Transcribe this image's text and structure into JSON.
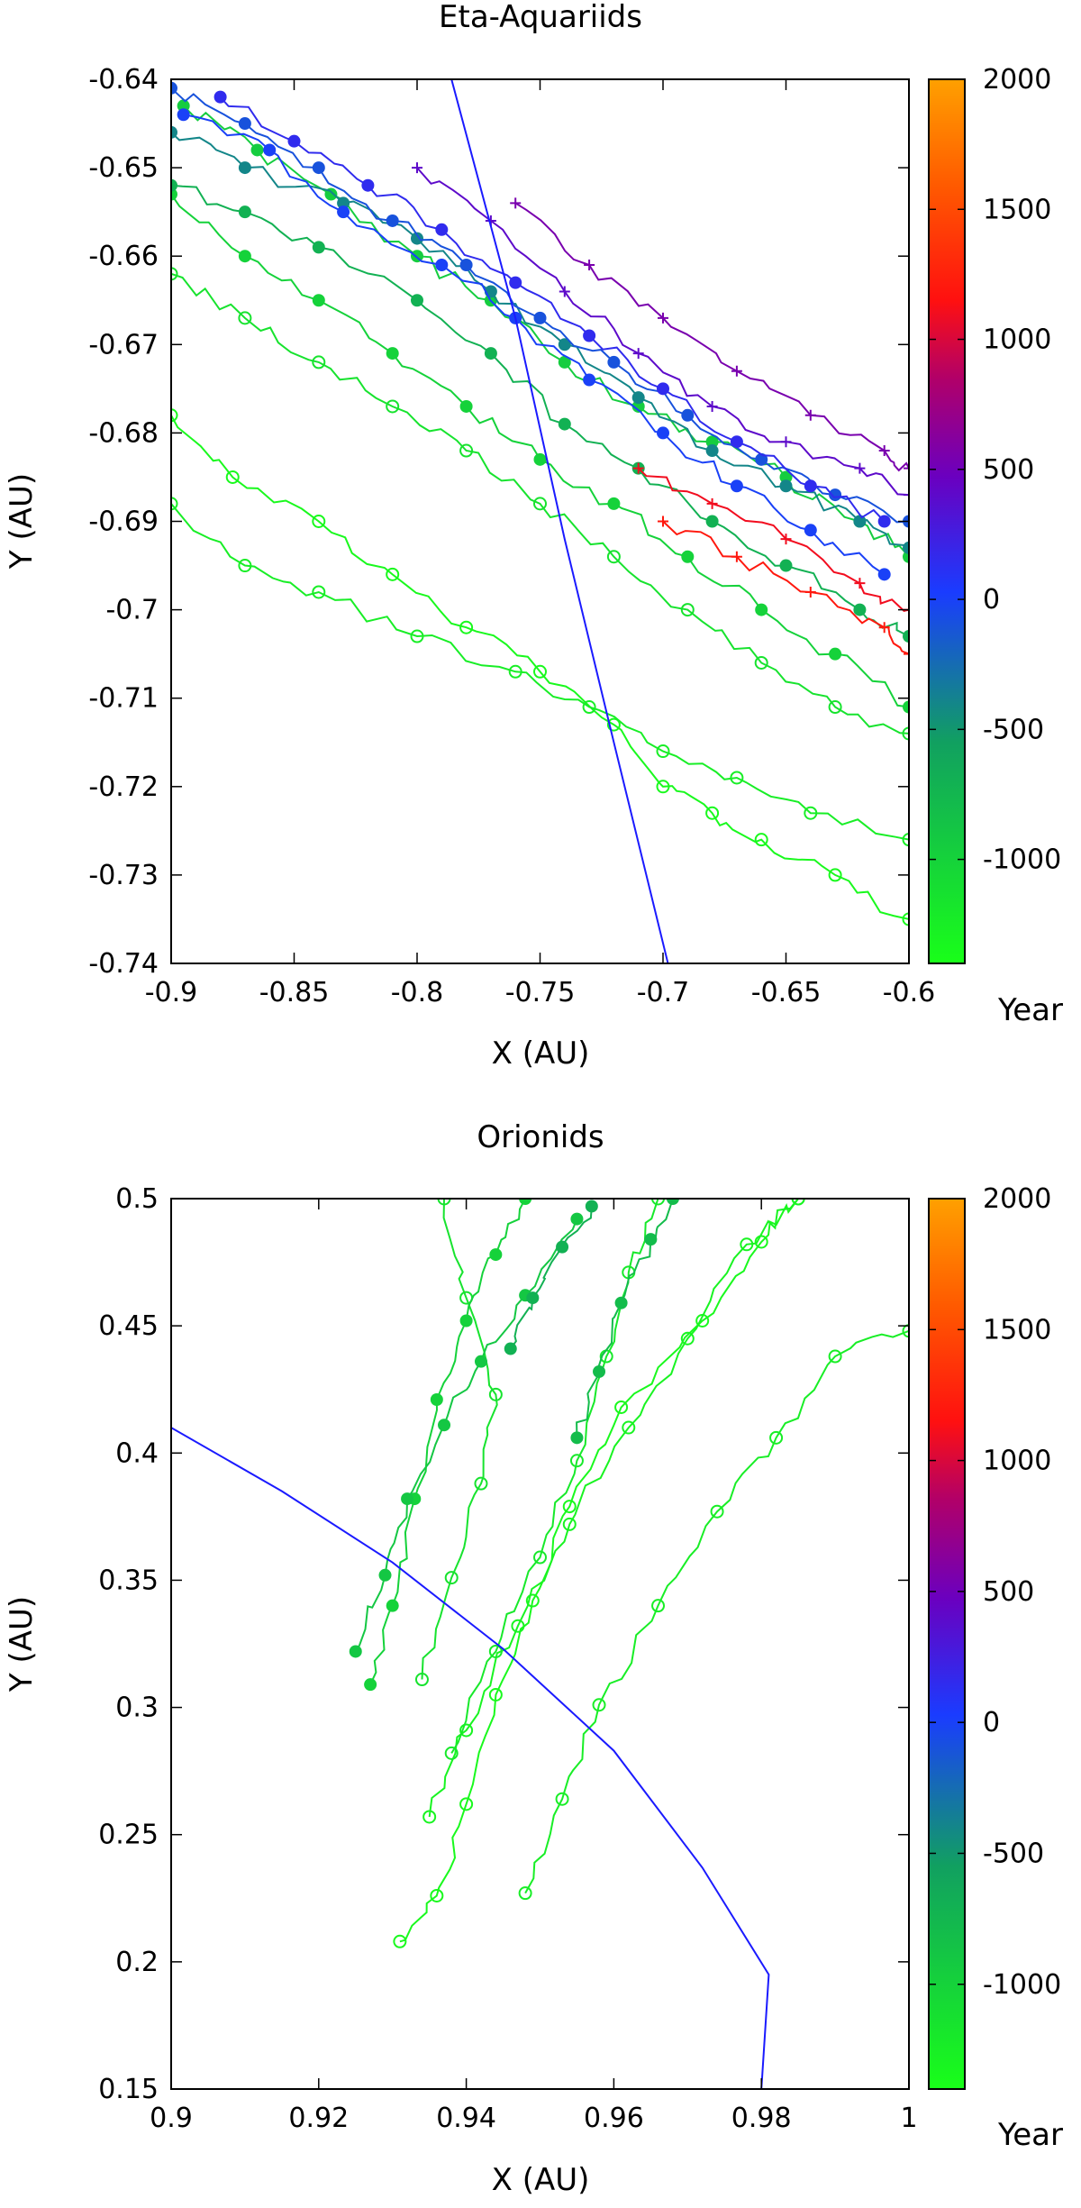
{
  "chart_data": [
    {
      "type": "line",
      "title": "Eta-Aquariids",
      "xlabel": "X (AU)",
      "ylabel": "Y (AU)",
      "xlim": [
        -0.9,
        -0.6
      ],
      "ylim": [
        -0.74,
        -0.64
      ],
      "xticks": [
        "-0.9",
        "-0.85",
        "-0.8",
        "-0.75",
        "-0.7",
        "-0.65",
        "-0.6"
      ],
      "yticks": [
        "-0.64",
        "-0.65",
        "-0.66",
        "-0.67",
        "-0.68",
        "-0.69",
        "-0.7",
        "-0.71",
        "-0.72",
        "-0.73",
        "-0.74"
      ],
      "colorbar": {
        "label": "Year",
        "range": [
          -1400,
          2000
        ],
        "ticks": [
          "2000",
          "1500",
          "1000",
          "500",
          "0",
          "-500",
          "-1000"
        ]
      },
      "earth_orbit": {
        "color": "#1a1aff",
        "points": [
          [
            -0.786,
            -0.64
          ],
          [
            -0.76,
            -0.667
          ],
          [
            -0.74,
            -0.692
          ],
          [
            -0.72,
            -0.715
          ],
          [
            -0.698,
            -0.74
          ]
        ]
      },
      "series": [
        {
          "year": -1350,
          "marker": "open-circle",
          "points": [
            [
              -0.9,
              -0.678
            ],
            [
              -0.875,
              -0.685
            ],
            [
              -0.84,
              -0.69
            ],
            [
              -0.81,
              -0.696
            ],
            [
              -0.78,
              -0.702
            ],
            [
              -0.75,
              -0.707
            ],
            [
              -0.72,
              -0.713
            ],
            [
              -0.7,
              -0.72
            ],
            [
              -0.68,
              -0.723
            ],
            [
              -0.66,
              -0.726
            ],
            [
              -0.63,
              -0.73
            ],
            [
              -0.6,
              -0.735
            ]
          ]
        },
        {
          "year": -1250,
          "marker": "open-circle",
          "points": [
            [
              -0.9,
              -0.688
            ],
            [
              -0.87,
              -0.695
            ],
            [
              -0.84,
              -0.698
            ],
            [
              -0.8,
              -0.703
            ],
            [
              -0.76,
              -0.707
            ],
            [
              -0.73,
              -0.711
            ],
            [
              -0.7,
              -0.716
            ],
            [
              -0.67,
              -0.719
            ],
            [
              -0.64,
              -0.723
            ],
            [
              -0.6,
              -0.726
            ]
          ]
        },
        {
          "year": -1150,
          "marker": "open-circle",
          "points": [
            [
              -0.9,
              -0.662
            ],
            [
              -0.87,
              -0.667
            ],
            [
              -0.84,
              -0.672
            ],
            [
              -0.81,
              -0.677
            ],
            [
              -0.78,
              -0.682
            ],
            [
              -0.75,
              -0.688
            ],
            [
              -0.72,
              -0.694
            ],
            [
              -0.69,
              -0.7
            ],
            [
              -0.66,
              -0.706
            ],
            [
              -0.63,
              -0.711
            ],
            [
              -0.6,
              -0.714
            ]
          ]
        },
        {
          "year": -1000,
          "marker": "filled-circle",
          "points": [
            [
              -0.9,
              -0.653
            ],
            [
              -0.87,
              -0.66
            ],
            [
              -0.84,
              -0.665
            ],
            [
              -0.81,
              -0.671
            ],
            [
              -0.78,
              -0.677
            ],
            [
              -0.75,
              -0.683
            ],
            [
              -0.72,
              -0.688
            ],
            [
              -0.69,
              -0.694
            ],
            [
              -0.66,
              -0.7
            ],
            [
              -0.63,
              -0.705
            ],
            [
              -0.6,
              -0.711
            ]
          ]
        },
        {
          "year": -950,
          "marker": "filled-circle",
          "points": [
            [
              -0.895,
              -0.643
            ],
            [
              -0.865,
              -0.648
            ],
            [
              -0.835,
              -0.653
            ],
            [
              -0.8,
              -0.66
            ],
            [
              -0.77,
              -0.665
            ],
            [
              -0.74,
              -0.672
            ],
            [
              -0.71,
              -0.677
            ],
            [
              -0.68,
              -0.681
            ],
            [
              -0.65,
              -0.685
            ],
            [
              -0.62,
              -0.69
            ],
            [
              -0.6,
              -0.694
            ]
          ]
        },
        {
          "year": -700,
          "marker": "filled-circle",
          "points": [
            [
              -0.9,
              -0.652
            ],
            [
              -0.87,
              -0.655
            ],
            [
              -0.84,
              -0.659
            ],
            [
              -0.8,
              -0.665
            ],
            [
              -0.77,
              -0.671
            ],
            [
              -0.74,
              -0.679
            ],
            [
              -0.71,
              -0.684
            ],
            [
              -0.68,
              -0.69
            ],
            [
              -0.65,
              -0.695
            ],
            [
              -0.62,
              -0.7
            ],
            [
              -0.6,
              -0.703
            ]
          ]
        },
        {
          "year": -400,
          "marker": "filled-circle",
          "points": [
            [
              -0.9,
              -0.646
            ],
            [
              -0.87,
              -0.65
            ],
            [
              -0.83,
              -0.654
            ],
            [
              -0.8,
              -0.658
            ],
            [
              -0.77,
              -0.664
            ],
            [
              -0.74,
              -0.67
            ],
            [
              -0.71,
              -0.676
            ],
            [
              -0.68,
              -0.682
            ],
            [
              -0.65,
              -0.686
            ],
            [
              -0.62,
              -0.69
            ],
            [
              -0.6,
              -0.693
            ]
          ]
        },
        {
          "year": -100,
          "marker": "filled-circle",
          "points": [
            [
              -0.9,
              -0.641
            ],
            [
              -0.87,
              -0.645
            ],
            [
              -0.84,
              -0.65
            ],
            [
              -0.81,
              -0.656
            ],
            [
              -0.78,
              -0.661
            ],
            [
              -0.75,
              -0.667
            ],
            [
              -0.72,
              -0.672
            ],
            [
              -0.69,
              -0.678
            ],
            [
              -0.66,
              -0.683
            ],
            [
              -0.63,
              -0.687
            ],
            [
              -0.6,
              -0.69
            ]
          ]
        },
        {
          "year": 0,
          "marker": "filled-circle",
          "points": [
            [
              -0.895,
              -0.644
            ],
            [
              -0.86,
              -0.648
            ],
            [
              -0.83,
              -0.655
            ],
            [
              -0.79,
              -0.661
            ],
            [
              -0.76,
              -0.667
            ],
            [
              -0.73,
              -0.674
            ],
            [
              -0.7,
              -0.68
            ],
            [
              -0.67,
              -0.686
            ],
            [
              -0.64,
              -0.691
            ],
            [
              -0.61,
              -0.696
            ]
          ]
        },
        {
          "year": 150,
          "marker": "filled-circle",
          "points": [
            [
              -0.88,
              -0.642
            ],
            [
              -0.85,
              -0.647
            ],
            [
              -0.82,
              -0.652
            ],
            [
              -0.79,
              -0.657
            ],
            [
              -0.76,
              -0.663
            ],
            [
              -0.73,
              -0.669
            ],
            [
              -0.7,
              -0.675
            ],
            [
              -0.67,
              -0.681
            ],
            [
              -0.64,
              -0.686
            ],
            [
              -0.61,
              -0.69
            ]
          ]
        },
        {
          "year": 400,
          "marker": "plus",
          "points": [
            [
              -0.8,
              -0.65
            ],
            [
              -0.77,
              -0.656
            ],
            [
              -0.74,
              -0.664
            ],
            [
              -0.71,
              -0.671
            ],
            [
              -0.68,
              -0.677
            ],
            [
              -0.65,
              -0.681
            ],
            [
              -0.62,
              -0.684
            ],
            [
              -0.6,
              -0.687
            ]
          ]
        },
        {
          "year": 550,
          "marker": "plus",
          "points": [
            [
              -0.76,
              -0.654
            ],
            [
              -0.73,
              -0.661
            ],
            [
              -0.7,
              -0.667
            ],
            [
              -0.67,
              -0.673
            ],
            [
              -0.64,
              -0.678
            ],
            [
              -0.61,
              -0.682
            ],
            [
              -0.6,
              -0.684
            ]
          ]
        },
        {
          "year": 1100,
          "marker": "plus",
          "points": [
            [
              -0.71,
              -0.684
            ],
            [
              -0.68,
              -0.688
            ],
            [
              -0.65,
              -0.692
            ],
            [
              -0.62,
              -0.697
            ],
            [
              -0.6,
              -0.7
            ]
          ]
        },
        {
          "year": 1200,
          "marker": "plus",
          "points": [
            [
              -0.7,
              -0.69
            ],
            [
              -0.67,
              -0.694
            ],
            [
              -0.64,
              -0.698
            ],
            [
              -0.61,
              -0.702
            ],
            [
              -0.6,
              -0.705
            ]
          ]
        }
      ]
    },
    {
      "type": "line",
      "title": "Orionids",
      "xlabel": "X (AU)",
      "ylabel": "Y (AU)",
      "xlim": [
        0.9,
        1.0
      ],
      "ylim": [
        0.15,
        0.5
      ],
      "xticks": [
        "0.9",
        "0.92",
        "0.94",
        "0.96",
        "0.98",
        "1"
      ],
      "yticks": [
        "0.5",
        "0.45",
        "0.4",
        "0.35",
        "0.3",
        "0.25",
        "0.2",
        "0.15"
      ],
      "colorbar": {
        "label": "Year",
        "range": [
          -1400,
          2000
        ],
        "ticks": [
          "2000",
          "1500",
          "1000",
          "500",
          "0",
          "-500",
          "-1000"
        ]
      },
      "earth_orbit": {
        "color": "#1a1aff",
        "points": [
          [
            0.9,
            0.41
          ],
          [
            0.915,
            0.385
          ],
          [
            0.93,
            0.357
          ],
          [
            0.945,
            0.323
          ],
          [
            0.96,
            0.283
          ],
          [
            0.972,
            0.237
          ],
          [
            0.981,
            0.195
          ],
          [
            0.98,
            0.15
          ]
        ]
      },
      "series": [
        {
          "year": -1350,
          "marker": "open-circle",
          "points": [
            [
              0.931,
              0.208
            ],
            [
              0.936,
              0.226
            ],
            [
              0.94,
              0.262
            ],
            [
              0.944,
              0.305
            ],
            [
              0.949,
              0.342
            ],
            [
              0.954,
              0.379
            ],
            [
              0.961,
              0.418
            ],
            [
              0.972,
              0.452
            ],
            [
              0.98,
              0.483
            ],
            [
              0.985,
              0.5
            ]
          ]
        },
        {
          "year": -1300,
          "marker": "open-circle",
          "points": [
            [
              0.935,
              0.257
            ],
            [
              0.94,
              0.291
            ],
            [
              0.947,
              0.332
            ],
            [
              0.954,
              0.372
            ],
            [
              0.962,
              0.41
            ],
            [
              0.97,
              0.445
            ],
            [
              0.978,
              0.482
            ],
            [
              0.985,
              0.5
            ]
          ]
        },
        {
          "year": -1250,
          "marker": "open-circle",
          "points": [
            [
              0.948,
              0.227
            ],
            [
              0.953,
              0.264
            ],
            [
              0.958,
              0.301
            ],
            [
              0.966,
              0.34
            ],
            [
              0.974,
              0.377
            ],
            [
              0.982,
              0.406
            ],
            [
              0.99,
              0.438
            ],
            [
              1.0,
              0.448
            ]
          ]
        },
        {
          "year": -1200,
          "marker": "open-circle",
          "points": [
            [
              0.938,
              0.282
            ],
            [
              0.944,
              0.322
            ],
            [
              0.95,
              0.359
            ],
            [
              0.955,
              0.397
            ],
            [
              0.959,
              0.438
            ],
            [
              0.962,
              0.471
            ],
            [
              0.966,
              0.5
            ]
          ]
        },
        {
          "year": -1150,
          "marker": "open-circle",
          "points": [
            [
              0.934,
              0.311
            ],
            [
              0.938,
              0.351
            ],
            [
              0.942,
              0.388
            ],
            [
              0.944,
              0.423
            ],
            [
              0.94,
              0.461
            ],
            [
              0.937,
              0.5
            ]
          ]
        },
        {
          "year": -1000,
          "marker": "filled-circle",
          "points": [
            [
              0.927,
              0.309
            ],
            [
              0.93,
              0.34
            ],
            [
              0.933,
              0.382
            ],
            [
              0.936,
              0.421
            ],
            [
              0.94,
              0.452
            ],
            [
              0.944,
              0.478
            ],
            [
              0.948,
              0.5
            ]
          ]
        },
        {
          "year": -900,
          "marker": "filled-circle",
          "points": [
            [
              0.925,
              0.322
            ],
            [
              0.929,
              0.352
            ],
            [
              0.932,
              0.382
            ],
            [
              0.937,
              0.411
            ],
            [
              0.942,
              0.436
            ],
            [
              0.948,
              0.462
            ],
            [
              0.955,
              0.492
            ]
          ]
        },
        {
          "year": -800,
          "marker": "filled-circle",
          "points": [
            [
              0.955,
              0.406
            ],
            [
              0.958,
              0.432
            ],
            [
              0.961,
              0.459
            ],
            [
              0.965,
              0.484
            ],
            [
              0.968,
              0.5
            ]
          ]
        },
        {
          "year": -700,
          "marker": "filled-circle",
          "points": [
            [
              0.946,
              0.441
            ],
            [
              0.949,
              0.461
            ],
            [
              0.953,
              0.481
            ],
            [
              0.957,
              0.497
            ]
          ]
        }
      ]
    }
  ]
}
